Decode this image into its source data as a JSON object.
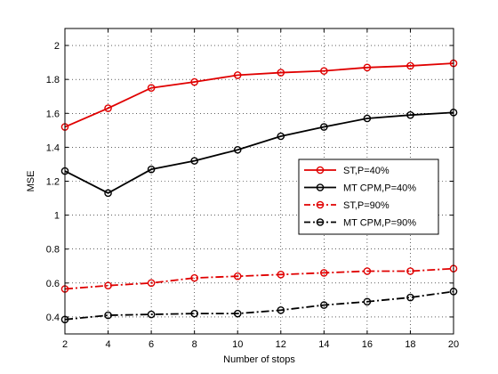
{
  "chart_data": {
    "type": "line",
    "title": "",
    "xlabel": "Number of stops",
    "ylabel": "MSE",
    "x": [
      2,
      4,
      6,
      8,
      10,
      12,
      14,
      16,
      18,
      20
    ],
    "xlim": [
      2,
      20
    ],
    "ylim": [
      0.3,
      2.1
    ],
    "xticks": [
      2,
      4,
      6,
      8,
      10,
      12,
      14,
      16,
      18,
      20
    ],
    "yticks": [
      0.4,
      0.6,
      0.8,
      1,
      1.2,
      1.4,
      1.6,
      1.8,
      2
    ],
    "ytick_labels": [
      "0.4",
      "0.6",
      "0.8",
      "1",
      "1.2",
      "1.4",
      "1.6",
      "1.8",
      "2"
    ],
    "grid": true,
    "grid_style": "dotted",
    "legend_position": "right",
    "series": [
      {
        "name": "ST,P=40%",
        "color": "#e00000",
        "dash": "solid",
        "marker": "circle",
        "values": [
          1.52,
          1.63,
          1.75,
          1.785,
          1.825,
          1.84,
          1.85,
          1.87,
          1.88,
          1.895
        ]
      },
      {
        "name": "MT CPM,P=40%",
        "color": "#000000",
        "dash": "solid",
        "marker": "circle",
        "values": [
          1.26,
          1.13,
          1.27,
          1.32,
          1.385,
          1.465,
          1.52,
          1.57,
          1.59,
          1.605
        ]
      },
      {
        "name": "ST,P=90%",
        "color": "#e00000",
        "dash": "dashdot",
        "marker": "circle",
        "values": [
          0.565,
          0.585,
          0.6,
          0.63,
          0.64,
          0.65,
          0.66,
          0.67,
          0.67,
          0.685
        ]
      },
      {
        "name": "MT CPM,P=90%",
        "color": "#000000",
        "dash": "dashdot",
        "marker": "circle",
        "values": [
          0.385,
          0.41,
          0.415,
          0.42,
          0.42,
          0.44,
          0.47,
          0.49,
          0.515,
          0.55
        ]
      }
    ]
  }
}
